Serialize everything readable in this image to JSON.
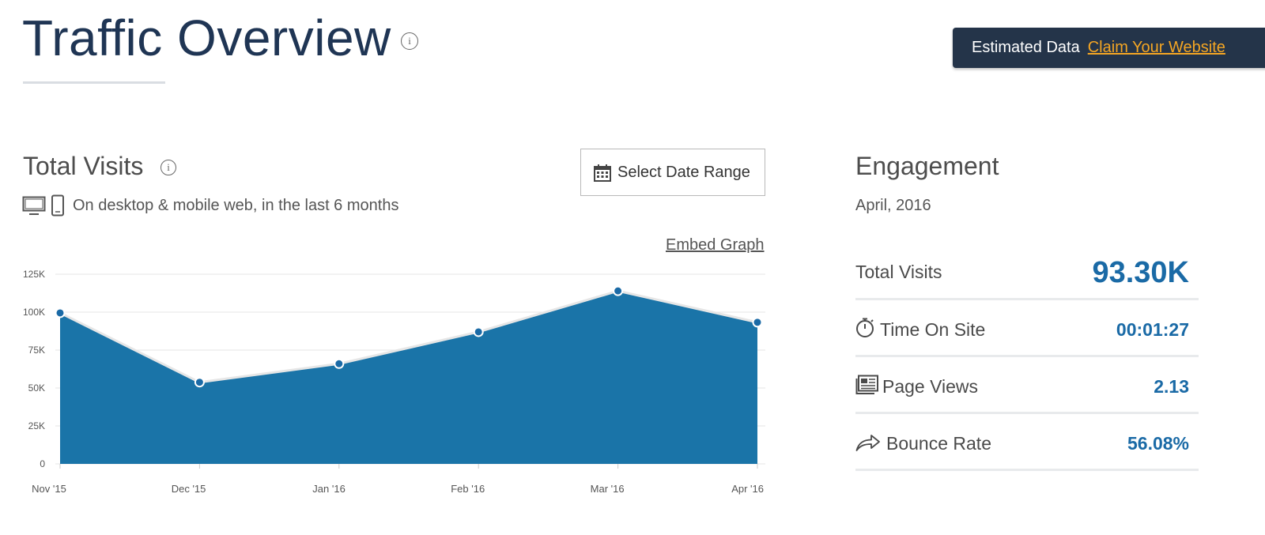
{
  "header": {
    "title": "Traffic Overview",
    "info_icon": "i"
  },
  "banner": {
    "text": "Estimated Data",
    "link": "Claim Your Website"
  },
  "visits": {
    "title": "Total Visits",
    "info_icon": "i",
    "subtitle": "On desktop & mobile web, in the last 6 months",
    "date_button": "Select Date Range",
    "embed_link": "Embed Graph"
  },
  "chart_data": {
    "type": "area",
    "categories": [
      "Nov '15",
      "Dec '15",
      "Jan '16",
      "Feb '16",
      "Mar '16",
      "Apr '16"
    ],
    "values": [
      99500,
      53800,
      66000,
      87000,
      114000,
      93300
    ],
    "y_ticks": [
      "0",
      "25K",
      "50K",
      "75K",
      "100K",
      "125K"
    ],
    "ylim": [
      0,
      125000
    ],
    "grid": true,
    "fill_color": "#1a74a8",
    "line_color": "#e6e6e6"
  },
  "engagement": {
    "title": "Engagement",
    "period": "April, 2016",
    "rows": [
      {
        "label": "Total Visits",
        "value": "93.30K",
        "icon": "none"
      },
      {
        "label": "Time On Site",
        "value": "00:01:27",
        "icon": "stopwatch-icon"
      },
      {
        "label": "Page Views",
        "value": "2.13",
        "icon": "pages-icon"
      },
      {
        "label": "Bounce Rate",
        "value": "56.08%",
        "icon": "bounce-arrow-icon"
      }
    ]
  },
  "colors": {
    "title": "#1f3554",
    "banner_bg": "#243449",
    "banner_link": "#f5a623",
    "accent": "#1a6aa6"
  }
}
